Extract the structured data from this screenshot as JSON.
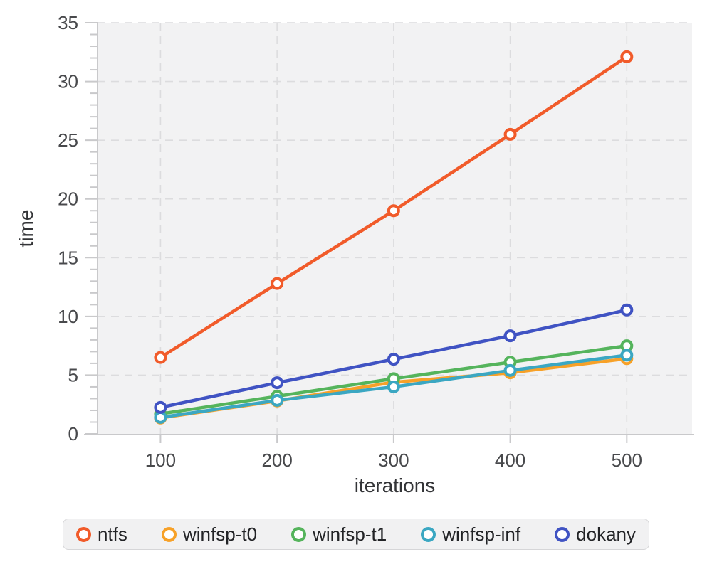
{
  "chart_data": {
    "type": "line",
    "title": "",
    "xlabel": "iterations",
    "ylabel": "time",
    "x": [
      100,
      200,
      300,
      400,
      500
    ],
    "xticks": [
      100,
      200,
      300,
      400,
      500
    ],
    "yticks": [
      0,
      5,
      10,
      15,
      20,
      25,
      30,
      35
    ],
    "xlim": [
      46,
      556
    ],
    "ylim": [
      0,
      35
    ],
    "grid": true,
    "grid_style": "dashed",
    "legend_position": "bottom",
    "series": [
      {
        "name": "ntfs",
        "color": "#f15b2a",
        "values": [
          6.5,
          12.8,
          19.0,
          25.5,
          32.1
        ]
      },
      {
        "name": "winfsp-t0",
        "color": "#f7a128",
        "values": [
          1.35,
          2.8,
          4.4,
          5.2,
          6.4
        ]
      },
      {
        "name": "winfsp-t1",
        "color": "#55b45c",
        "values": [
          1.7,
          3.2,
          4.7,
          6.1,
          7.5
        ]
      },
      {
        "name": "winfsp-inf",
        "color": "#3ba7c2",
        "values": [
          1.4,
          2.85,
          4.0,
          5.4,
          6.7
        ]
      },
      {
        "name": "dokany",
        "color": "#4053c3",
        "values": [
          2.25,
          4.35,
          6.35,
          8.35,
          10.55
        ]
      }
    ],
    "colors": {
      "plot_background": "#f2f2f3",
      "gridline": "#dcdcde",
      "axis_line": "#c9c9cb",
      "tick_label": "#48494c",
      "axis_title": "#333437",
      "marker_fill": "#ffffff"
    }
  }
}
